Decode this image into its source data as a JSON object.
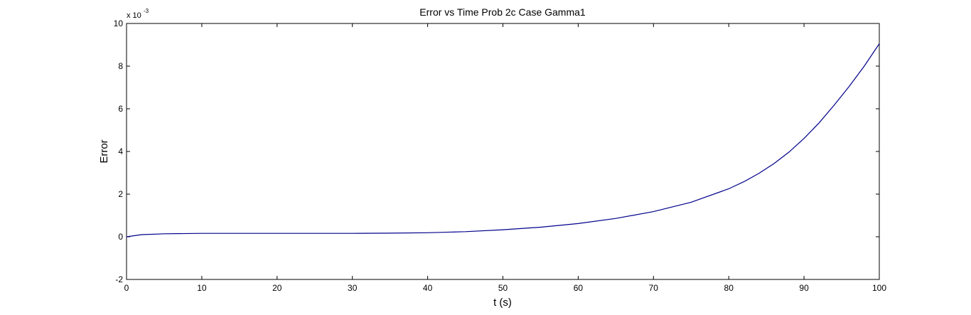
{
  "chart_data": {
    "type": "line",
    "title": "Error vs Time Prob 2c Case Gamma1",
    "xlabel": "t (s)",
    "ylabel": "Error",
    "y_exponent_base": "x 10",
    "y_exponent": "-3",
    "xlim": [
      0,
      100
    ],
    "ylim": [
      -2,
      10
    ],
    "x_ticks": [
      0,
      10,
      20,
      30,
      40,
      50,
      60,
      70,
      80,
      90,
      100
    ],
    "y_ticks": [
      -2,
      0,
      2,
      4,
      6,
      8,
      10
    ],
    "grid": false,
    "series": [
      {
        "color": "#00008b",
        "x": [
          0,
          2,
          5,
          10,
          15,
          20,
          25,
          30,
          35,
          40,
          45,
          50,
          55,
          60,
          65,
          70,
          75,
          80,
          82,
          84,
          86,
          88,
          90,
          92,
          94,
          96,
          98,
          100
        ],
        "y": [
          0.0,
          0.1,
          0.14,
          0.16,
          0.16,
          0.16,
          0.16,
          0.16,
          0.17,
          0.19,
          0.24,
          0.33,
          0.45,
          0.62,
          0.86,
          1.18,
          1.62,
          2.25,
          2.58,
          2.97,
          3.43,
          3.97,
          4.61,
          5.34,
          6.17,
          7.05,
          8.0,
          9.05
        ]
      }
    ]
  }
}
